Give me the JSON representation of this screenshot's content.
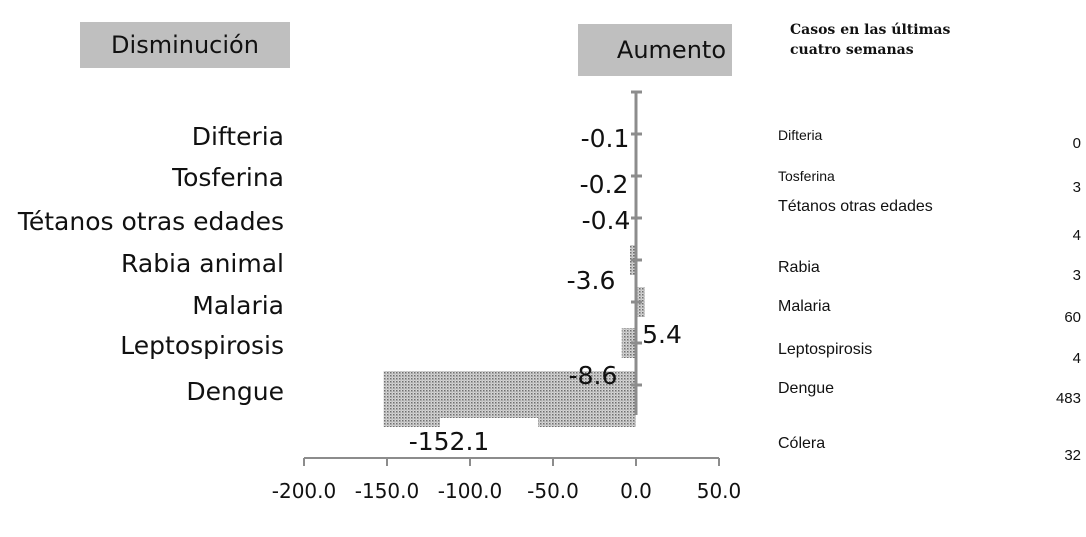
{
  "headers": {
    "decrease": "Disminución",
    "increase": "Aumento"
  },
  "chart_data": {
    "type": "bar",
    "orientation": "horizontal",
    "categories": [
      "Difteria",
      "Tosferina",
      "Tétanos otras edades",
      "Rabia animal",
      "Malaria",
      "Leptospirosis",
      "Dengue"
    ],
    "values": [
      -0.1,
      -0.2,
      -0.4,
      -3.6,
      5.4,
      -8.6,
      -152.1
    ],
    "value_labels": [
      "-0.1",
      "-0.2",
      "-0.4",
      "-3.6",
      "5.4",
      "-8.6",
      "-152.1"
    ],
    "xlim": [
      -200,
      50
    ],
    "xticks": [
      -200,
      -150,
      -100,
      -50,
      0,
      50
    ],
    "xtick_labels": [
      "-200.0",
      "-150.0",
      "-100.0",
      "-50.0",
      "0.0",
      "50.0"
    ],
    "bar_pattern": "dotted-grey",
    "axis_color": "#8c8c8c",
    "header_color": "#bfbfbf"
  },
  "table": {
    "title": "Casos en las últimas cuatro semanas",
    "rows": [
      {
        "name": "Difteria",
        "value": "0"
      },
      {
        "name": "Tosferina",
        "value": "3"
      },
      {
        "name": "Tétanos otras edades",
        "value": "4"
      },
      {
        "name": "Rabia",
        "value": "3"
      },
      {
        "name": "Malaria",
        "value": "60"
      },
      {
        "name": "Leptospirosis",
        "value": "4"
      },
      {
        "name": "Dengue",
        "value": "483"
      },
      {
        "name": "Cólera",
        "value": "32"
      }
    ]
  }
}
